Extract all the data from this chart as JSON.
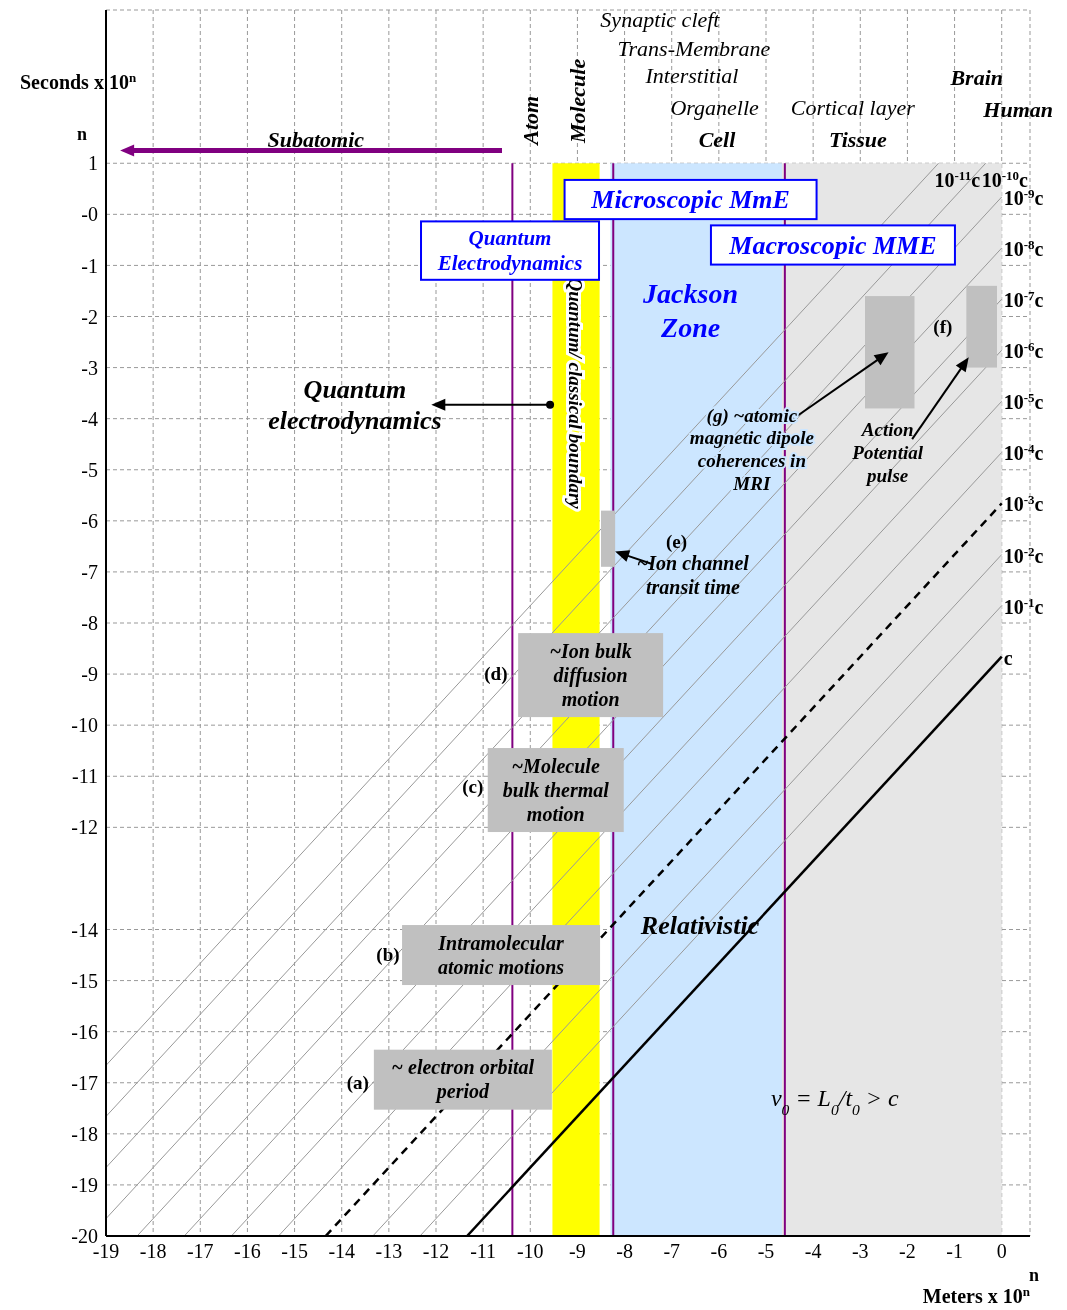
{
  "chart_data": {
    "type": "line",
    "ylabel": "Seconds x 10$^{n}$",
    "xlabel": "Meters x 10$^{n}$",
    "xlim": [
      -19,
      0.6
    ],
    "ylim": [
      -20,
      4
    ],
    "xticks": [
      -19,
      -18,
      -17,
      -16,
      -15,
      -14,
      -13,
      -12,
      -11,
      -10,
      -9,
      -8,
      -7,
      -6,
      -5,
      -4,
      -3,
      -2,
      -1,
      0
    ],
    "yticks": [
      1,
      {
        "value": 0,
        "label": "-0"
      },
      -1,
      -2,
      -3,
      -4,
      -5,
      -6,
      -7,
      -8,
      -9,
      -10,
      -11,
      -12,
      -14,
      -15,
      -16,
      -17,
      -18,
      -19,
      -20
    ],
    "grid": true,
    "legend": false,
    "marker": "none",
    "series": [
      {
        "name": "c",
        "color": "#000000",
        "x": [
          -11.34,
          0
        ],
        "values": [
          -20,
          -8.66
        ]
      },
      {
        "name": "10$^{-1}$c",
        "color": "#999999",
        "x": [
          -12.34,
          0
        ],
        "values": [
          -20,
          -7.66
        ]
      },
      {
        "name": "10$^{-2}$c",
        "color": "#999999",
        "x": [
          -13.34,
          0
        ],
        "values": [
          -20,
          -6.66
        ]
      },
      {
        "name": "10$^{-3}$c",
        "color": "#000000",
        "line_style": "dashed",
        "x": [
          -14.34,
          0
        ],
        "values": [
          -20,
          -5.66
        ]
      },
      {
        "name": "10$^{-4}$c",
        "color": "#999999",
        "x": [
          -15.34,
          0
        ],
        "values": [
          -20,
          -4.66
        ]
      },
      {
        "name": "10$^{-5}$c",
        "color": "#999999",
        "x": [
          -16.34,
          0
        ],
        "values": [
          -20,
          -3.66
        ]
      },
      {
        "name": "10$^{-6}$c",
        "color": "#999999",
        "x": [
          -17.34,
          0
        ],
        "values": [
          -20,
          -2.66
        ]
      },
      {
        "name": "10$^{-7}$c",
        "color": "#999999",
        "x": [
          -18.34,
          0
        ],
        "values": [
          -20,
          -1.66
        ]
      },
      {
        "name": "10$^{-8}$c",
        "color": "#999999",
        "x": [
          -19,
          0
        ],
        "values": [
          -19.66,
          -0.66
        ]
      },
      {
        "name": "10$^{-9}$c",
        "color": "#999999",
        "x": [
          -19,
          0
        ],
        "values": [
          -18.66,
          0.34
        ]
      },
      {
        "name": "10$^{-10}$c",
        "color": "#999999",
        "x": [
          -19,
          -0.34
        ],
        "values": [
          -17.66,
          1
        ]
      },
      {
        "name": "10$^{-11}$c",
        "color": "#999999",
        "x": [
          -19,
          -1.34
        ],
        "values": [
          -16.66,
          1
        ]
      }
    ],
    "bands": [
      {
        "axis": "x",
        "from": -9.53,
        "to": -8.53,
        "color": "#ffff00",
        "label": "Quantum/ classical boundary"
      },
      {
        "axis": "x",
        "from": -8.3,
        "to": -4.66,
        "color": "#cce6ff"
      },
      {
        "axis": "x",
        "from": -4.66,
        "to": 0,
        "color": "#e6e6e6"
      }
    ],
    "ref_lines": [
      {
        "axis": "x",
        "value": -10.38,
        "color": "#800080"
      },
      {
        "axis": "x",
        "value": -8.24,
        "color": "#800080"
      },
      {
        "axis": "x",
        "value": -4.6,
        "color": "#800080"
      }
    ],
    "annotations": [
      "Subatomic",
      "Atom",
      "Molecule",
      "Synaptic cleft",
      "Trans-Membrane",
      "Interstitial",
      "Organelle",
      "Cell",
      "Cortical  layer",
      "Tissue",
      "Brain",
      "Human",
      "Microscopic MmE",
      "Quantum\nElectrodynamics",
      "Macroscopic MME",
      "Jackson\nZone",
      "Quantum\nelectrodynamics",
      "(g) ~atomic\nmagnetic dipole\ncoherences in\nMRI",
      "Action\nPotential\npulse",
      "(f)",
      "(e)",
      "~Ion channel\ntransit time",
      "(d)",
      "~Ion bulk\ndiffusion\nmotion",
      "(c)",
      "~Molecule\nbulk thermal\nmotion",
      "(b)",
      "Intramolecular\natomic motions",
      "(a)",
      "~ electron orbital\nperiod",
      "Relativistic",
      "v$_{0}$ = L$_{0}$/t$_{0}$ > c",
      "n",
      "n"
    ]
  }
}
